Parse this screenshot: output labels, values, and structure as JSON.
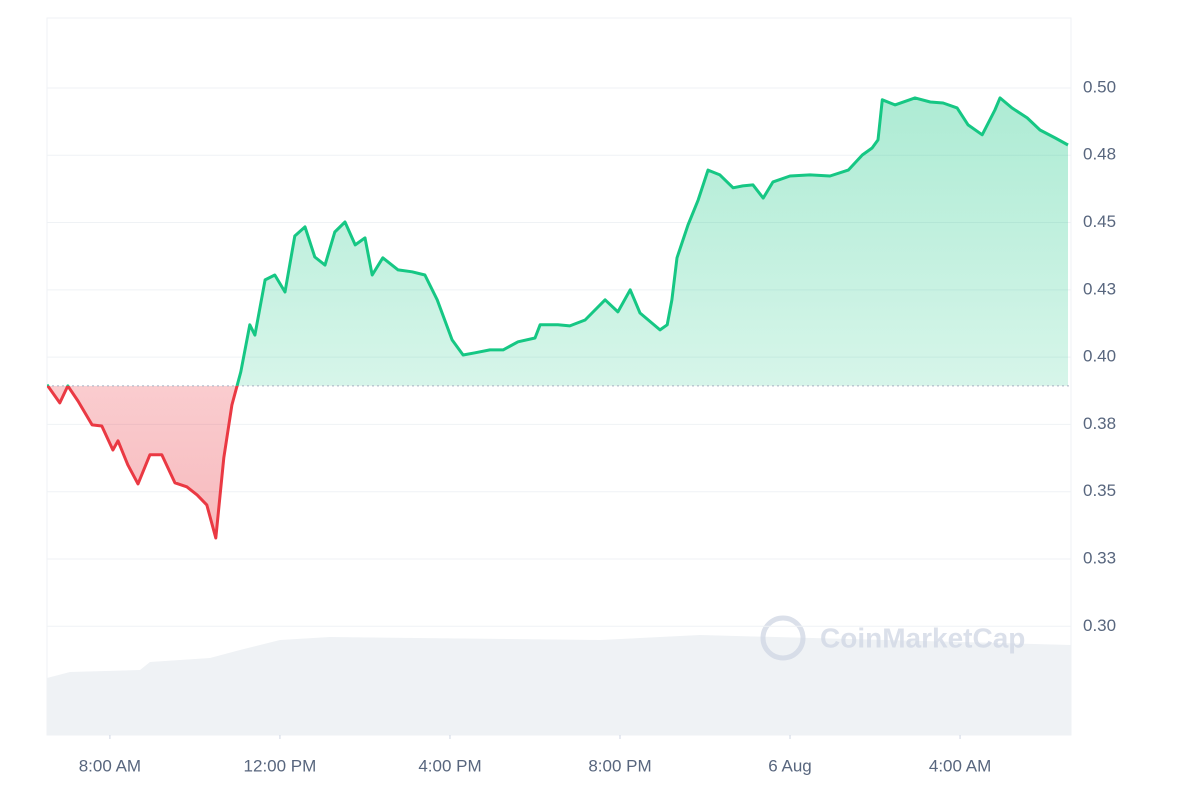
{
  "chart_data": {
    "type": "line",
    "watermark": "CoinMarketCap",
    "x": [
      6.52,
      6.82,
      7.01,
      7.25,
      7.58,
      7.81,
      8.07,
      8.19,
      8.42,
      8.66,
      8.94,
      9.22,
      9.53,
      9.81,
      10.05,
      10.28,
      10.49,
      10.68,
      10.87,
      11.08,
      11.29,
      11.41,
      11.65,
      11.88,
      12.12,
      12.35,
      12.59,
      12.82,
      13.06,
      13.29,
      13.53,
      13.77,
      14.0,
      14.17,
      14.42,
      14.78,
      15.11,
      15.41,
      15.7,
      16.05,
      16.31,
      16.59,
      16.94,
      17.25,
      17.6,
      18.0,
      18.12,
      18.54,
      18.82,
      19.18,
      19.65,
      19.95,
      20.24,
      20.47,
      20.94,
      21.11,
      21.22,
      21.34,
      21.6,
      21.84,
      22.07,
      22.35,
      22.66,
      22.89,
      23.13,
      23.37,
      23.6,
      24.0,
      24.47,
      24.94,
      25.37,
      25.7,
      25.93,
      26.07,
      26.17,
      26.47,
      26.94,
      27.3,
      27.6,
      27.93,
      28.19,
      28.52,
      28.82,
      28.94,
      29.22,
      29.58,
      29.88,
      30.24,
      30.54
    ],
    "values": [
      0.3897,
      0.383,
      0.3893,
      0.3837,
      0.3748,
      0.3744,
      0.3655,
      0.3689,
      0.36,
      0.3529,
      0.3637,
      0.3637,
      0.3533,
      0.3518,
      0.3488,
      0.3451,
      0.3328,
      0.3626,
      0.3822,
      0.3945,
      0.412,
      0.4082,
      0.4287,
      0.4305,
      0.4242,
      0.445,
      0.4484,
      0.4372,
      0.4342,
      0.4465,
      0.4502,
      0.4417,
      0.4443,
      0.4305,
      0.4369,
      0.4324,
      0.4317,
      0.4305,
      0.4213,
      0.4064,
      0.4008,
      0.4016,
      0.4027,
      0.4027,
      0.4057,
      0.4071,
      0.412,
      0.412,
      0.4116,
      0.4138,
      0.4213,
      0.4168,
      0.425,
      0.4164,
      0.4101,
      0.412,
      0.4213,
      0.4369,
      0.4491,
      0.4584,
      0.4695,
      0.4677,
      0.4629,
      0.4636,
      0.464,
      0.4591,
      0.4651,
      0.4673,
      0.4677,
      0.4673,
      0.4695,
      0.4751,
      0.4777,
      0.4807,
      0.4956,
      0.4937,
      0.4963,
      0.4948,
      0.4944,
      0.4926,
      0.4863,
      0.4826,
      0.4918,
      0.4963,
      0.4926,
      0.4889,
      0.4844,
      0.4814,
      0.4788
    ],
    "baseline": 0.3893,
    "up_color": "#16c784",
    "down_color": "#ea3943",
    "xlim": [
      6.52,
      30.61
    ],
    "ylim": [
      0.2596,
      0.526
    ],
    "xticks": [
      {
        "value": 8,
        "label": "8:00 AM"
      },
      {
        "value": 12,
        "label": "12:00 PM"
      },
      {
        "value": 16,
        "label": "4:00 PM"
      },
      {
        "value": 20,
        "label": "8:00 PM"
      },
      {
        "value": 24,
        "label": "6 Aug"
      },
      {
        "value": 28,
        "label": "4:00 AM"
      }
    ],
    "yticks": [
      {
        "value": 0.3,
        "label": "0.30"
      },
      {
        "value": 0.325,
        "label": "0.33"
      },
      0.35,
      {
        "value": 0.375,
        "label": "0.38"
      },
      {
        "value": 0.4,
        "label": "0.40"
      },
      {
        "value": 0.425,
        "label": "0.43"
      },
      0.45,
      {
        "value": 0.475,
        "label": "0.48"
      },
      {
        "value": 0.5,
        "label": "0.50"
      }
    ],
    "grid": true
  }
}
